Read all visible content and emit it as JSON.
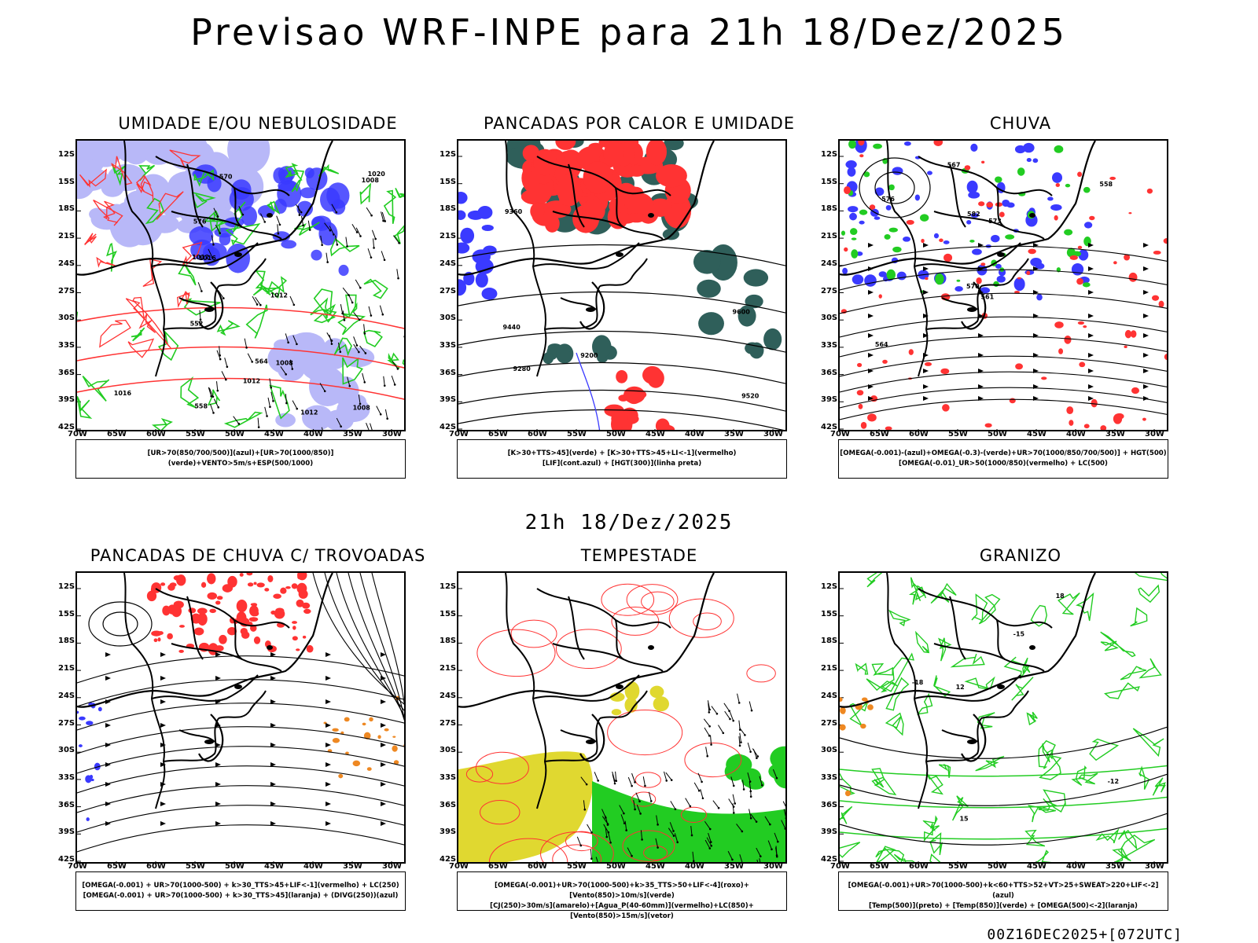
{
  "header": {
    "title": "Previsao WRF-INPE  para 21h 18/Dez/2025"
  },
  "subtitle": "21h 18/Dez/2025",
  "footer": "00Z16DEC2025+[072UTC]",
  "axes": {
    "lats": [
      "12S",
      "15S",
      "18S",
      "21S",
      "24S",
      "27S",
      "30S",
      "33S",
      "36S",
      "39S",
      "42S"
    ],
    "lons": [
      "70W",
      "65W",
      "60W",
      "55W",
      "50W",
      "45W",
      "40W",
      "35W",
      "30W"
    ]
  },
  "colors": {
    "blue": "#3a3aff",
    "green": "#22cc22",
    "red": "#ff3333",
    "darkgreen": "#2f5f5a",
    "lavender": "#b8b8f8",
    "yellow": "#e0d830",
    "orange": "#ee8822",
    "contour": "#000000"
  },
  "panels": [
    {
      "title": "UMIDADE E/OU NEBULOSIDADE",
      "legend_line1": "[UR>70(850/700/500)](azul)+[UR>70(1000/850)](verde)+VENTO>5m/s+ESP(500/1000)",
      "legend_line2": ""
    },
    {
      "title": "PANCADAS POR CALOR E UMIDADE",
      "legend_line1": "[K>30+TTS>45](verde)  +  [K>30+TTS>45+LI<-1](vermelho)",
      "legend_line2": "[LIF](cont.azul)  +  [HGT(300)](linha preta)"
    },
    {
      "title": "CHUVA",
      "legend_line1": "[OMEGA(-0.001)-(azul)+OMEGA(-0.3)-(verde)+UR>70(1000/850/700/500)]  +  HGT(500)",
      "legend_line2": "[OMEGA(-0.01)_UR>50(1000/850)(vermelho)  +  LC(500)"
    },
    {
      "title": "PANCADAS DE CHUVA C/ TROVOADAS",
      "legend_line1": "[OMEGA(-0.001)  +  UR>70(1000-500)  +  k>30_TTS>45+LIF<-1](vermelho)  +  LC(250)",
      "legend_line2": "[OMEGA(-0.001)  +  UR>70(1000-500)  +  k>30_TTS>45](laranja)  +  (DIVG(250))(azul)"
    },
    {
      "title": "TEMPESTADE",
      "legend_line1": "[OMEGA(-0.001)+UR>70(1000-500)+k>35_TTS>50+LIF<-4](roxo)+[Vento(850)>10m/s](verde)",
      "legend_line2": "[CJ(250)>30m/s](amarelo)+[Agua_P(40-60mm)](vermelho)+LC(850)+[Vento(850)>15m/s](vetor)"
    },
    {
      "title": "GRANIZO",
      "legend_line1": "[OMEGA(-0.001)+UR>70(1000-500)+k<60+TTS>52+VT>25+SWEAT>220+LIF<-2](azul)",
      "legend_line2": "[Temp(500)](preto)  +  [Temp(850)](verde)  +  [OMEGA(500)<-2](laranja)"
    }
  ],
  "contour_labels": {
    "p1": [
      "1012",
      "1008",
      "1016",
      "1012",
      "1008",
      "1012",
      "1016",
      "1020",
      "1008",
      "1012",
      "576",
      "570",
      "564",
      "558",
      "552"
    ],
    "p2": [
      "9600",
      "9520",
      "9440",
      "9360",
      "9280",
      "9200"
    ],
    "p3": [
      "576",
      "573",
      "570",
      "567",
      "564",
      "561",
      "558",
      "582"
    ],
    "p6": [
      "-12",
      "-15",
      "-18",
      "12",
      "15",
      "18"
    ]
  }
}
